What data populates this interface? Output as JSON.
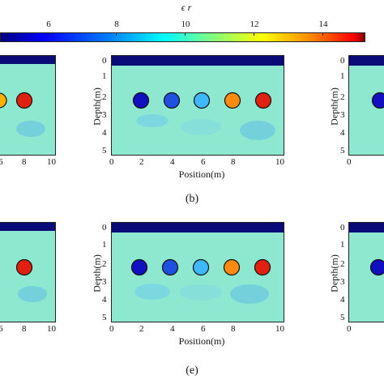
{
  "colorbar": {
    "title": "ϵ r",
    "ticks": [
      "6",
      "8",
      "10",
      "12",
      "14"
    ]
  },
  "panels": {
    "y_ticks": [
      "0",
      "1",
      "2",
      "3",
      "4",
      "5"
    ],
    "x_ticks": [
      "0",
      "2",
      "4",
      "6",
      "8",
      "10"
    ],
    "xlabel": "Position(m)",
    "ylabel": "Depth(m)"
  },
  "captions": {
    "top": "(b)",
    "bottom": "(e)"
  },
  "colors": {
    "background": "#8ee8d0",
    "air_layer": "#0a0a78",
    "target_dark_blue": "#1010c0",
    "target_blue": "#2050e0",
    "target_light_blue": "#40b8ff",
    "target_orange": "#ff8a10",
    "target_red": "#e02010"
  }
}
